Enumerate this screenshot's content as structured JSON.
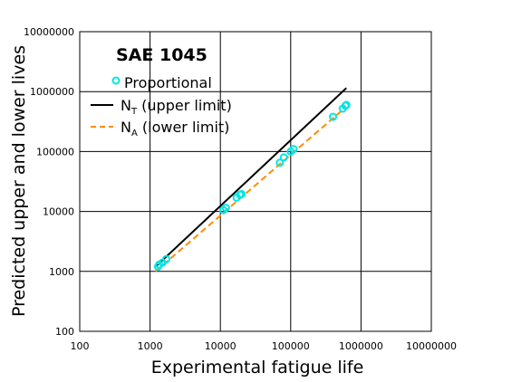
{
  "chart_data": {
    "type": "scatter",
    "title": "SAE 1045",
    "xlabel": "Experimental fatigue life",
    "ylabel": "Predicted upper and lower lives",
    "xscale": "log",
    "yscale": "log",
    "xlim": [
      100,
      10000000
    ],
    "ylim": [
      100,
      10000000
    ],
    "xticks": [
      "100",
      "1000",
      "10000",
      "100000",
      "1000000",
      "10000000"
    ],
    "yticks": [
      "100",
      "1000",
      "10000",
      "100000",
      "1000000",
      "10000000"
    ],
    "grid": true,
    "legend_position": "top-left",
    "legend": {
      "proportional": "Proportional",
      "nt_main": "N",
      "nt_sub": "T",
      "nt_rest": " (upper limit)",
      "na_main": "N",
      "na_sub": "A",
      "na_rest": " (lower limit)"
    },
    "series": [
      {
        "name": "Proportional",
        "kind": "markers",
        "color": "#00e5e5",
        "marker": "circle",
        "points": [
          [
            1300,
            1200
          ],
          [
            1350,
            1300
          ],
          [
            1500,
            1400
          ],
          [
            1700,
            1600
          ],
          [
            11000,
            10500
          ],
          [
            12000,
            11500
          ],
          [
            17000,
            17000
          ],
          [
            19000,
            19000
          ],
          [
            20000,
            19500
          ],
          [
            70000,
            65000
          ],
          [
            80000,
            80000
          ],
          [
            100000,
            100000
          ],
          [
            110000,
            110000
          ],
          [
            400000,
            380000
          ],
          [
            550000,
            520000
          ],
          [
            600000,
            580000
          ],
          [
            620000,
            600000
          ]
        ]
      },
      {
        "name": "N_T (upper limit)",
        "kind": "line",
        "color": "#000000",
        "dash": "solid",
        "points": [
          [
            1200,
            1200
          ],
          [
            620000,
            1150000
          ]
        ]
      },
      {
        "name": "N_A (lower limit)",
        "kind": "line",
        "color": "#ff8c00",
        "dash": "dashed",
        "points": [
          [
            1200,
            1000
          ],
          [
            620000,
            560000
          ]
        ]
      }
    ]
  }
}
